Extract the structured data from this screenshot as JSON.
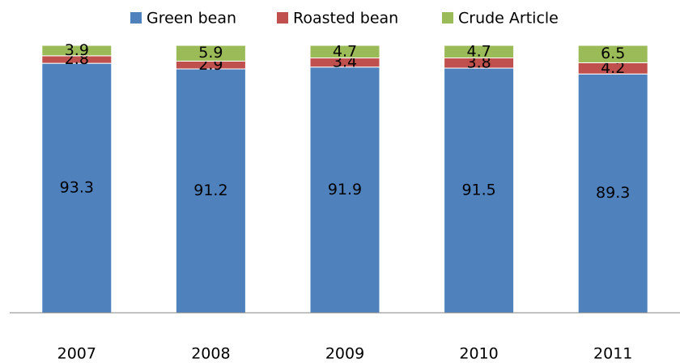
{
  "chart_data": {
    "type": "stacked_bar",
    "categories": [
      "2007",
      "2008",
      "2009",
      "2010",
      "2011"
    ],
    "series": [
      {
        "name": "Green bean",
        "color": "#4f81bd",
        "values": [
          93.3,
          91.2,
          91.9,
          91.5,
          89.3
        ]
      },
      {
        "name": "Roasted bean",
        "color": "#c0504d",
        "values": [
          2.8,
          2.9,
          3.4,
          3.8,
          4.2
        ]
      },
      {
        "name": "Crude Article",
        "color": "#9bbb59",
        "values": [
          3.9,
          5.9,
          4.7,
          4.7,
          6.5
        ]
      }
    ],
    "ylim": [
      0,
      100
    ]
  }
}
